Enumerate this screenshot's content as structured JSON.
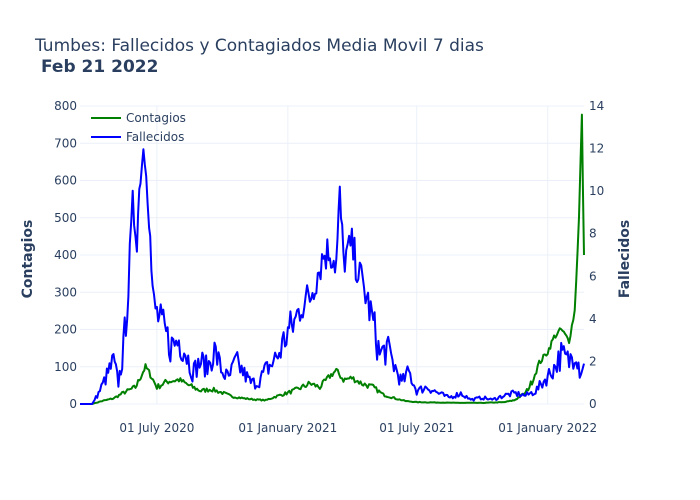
{
  "chart_data": {
    "type": "line",
    "title": "Tumbes: Fallecidos y Contagiados Media Movil 7 dias",
    "subtitle": "Feb 21 2022",
    "ylabel": "Contagios",
    "y2label": "Fallecidos",
    "ylim": [
      0,
      800
    ],
    "y2lim": [
      0,
      14
    ],
    "yticks": [
      "0",
      "100",
      "200",
      "300",
      "400",
      "500",
      "600",
      "700",
      "800"
    ],
    "y2ticks": [
      "0",
      "2",
      "4",
      "6",
      "8",
      "10",
      "12",
      "14"
    ],
    "xticks": [
      {
        "date": "2020-07-01",
        "label": "01 July 2020"
      },
      {
        "date": "2021-01-01",
        "label": "01 January 2021"
      },
      {
        "date": "2021-07-01",
        "label": "01 July 2021"
      },
      {
        "date": "2022-01-01",
        "label": "01 January 2022"
      }
    ],
    "xlim": [
      "2020-03-15",
      "2022-02-21"
    ],
    "grid": true,
    "legend_position": "top-left",
    "series": [
      {
        "name": "Contagios",
        "axis": "y",
        "color": "#008000",
        "points": [
          [
            "2020-03-15",
            0
          ],
          [
            "2020-04-01",
            0
          ],
          [
            "2020-04-15",
            8
          ],
          [
            "2020-05-01",
            15
          ],
          [
            "2020-05-15",
            30
          ],
          [
            "2020-06-01",
            45
          ],
          [
            "2020-06-10",
            80
          ],
          [
            "2020-06-15",
            100
          ],
          [
            "2020-06-20",
            85
          ],
          [
            "2020-07-01",
            45
          ],
          [
            "2020-07-15",
            60
          ],
          [
            "2020-08-01",
            65
          ],
          [
            "2020-08-15",
            50
          ],
          [
            "2020-09-01",
            35
          ],
          [
            "2020-09-15",
            40
          ],
          [
            "2020-10-01",
            30
          ],
          [
            "2020-10-15",
            20
          ],
          [
            "2020-11-01",
            15
          ],
          [
            "2020-11-15",
            12
          ],
          [
            "2020-12-01",
            10
          ],
          [
            "2020-12-15",
            20
          ],
          [
            "2021-01-01",
            30
          ],
          [
            "2021-01-15",
            40
          ],
          [
            "2021-02-01",
            55
          ],
          [
            "2021-02-15",
            45
          ],
          [
            "2021-03-01",
            75
          ],
          [
            "2021-03-10",
            90
          ],
          [
            "2021-03-20",
            65
          ],
          [
            "2021-04-01",
            70
          ],
          [
            "2021-04-15",
            55
          ],
          [
            "2021-05-01",
            45
          ],
          [
            "2021-05-15",
            25
          ],
          [
            "2021-06-01",
            15
          ],
          [
            "2021-06-15",
            8
          ],
          [
            "2021-07-01",
            5
          ],
          [
            "2021-08-01",
            4
          ],
          [
            "2021-09-01",
            3
          ],
          [
            "2021-10-01",
            3
          ],
          [
            "2021-11-01",
            5
          ],
          [
            "2021-11-15",
            10
          ],
          [
            "2021-12-01",
            30
          ],
          [
            "2021-12-10",
            60
          ],
          [
            "2021-12-20",
            110
          ],
          [
            "2022-01-01",
            140
          ],
          [
            "2022-01-10",
            180
          ],
          [
            "2022-01-20",
            200
          ],
          [
            "2022-01-31",
            170
          ],
          [
            "2022-02-08",
            250
          ],
          [
            "2022-02-14",
            500
          ],
          [
            "2022-02-18",
            772
          ],
          [
            "2022-02-21",
            400
          ]
        ]
      },
      {
        "name": "Fallecidos",
        "axis": "y2",
        "color": "#0000ff",
        "points": [
          [
            "2020-03-15",
            0
          ],
          [
            "2020-04-01",
            0
          ],
          [
            "2020-04-10",
            0.5
          ],
          [
            "2020-04-20",
            1.2
          ],
          [
            "2020-05-01",
            2.0
          ],
          [
            "2020-05-08",
            1.0
          ],
          [
            "2020-05-15",
            2.5
          ],
          [
            "2020-05-22",
            5.5
          ],
          [
            "2020-05-28",
            9.2
          ],
          [
            "2020-06-03",
            8.0
          ],
          [
            "2020-06-08",
            11.0
          ],
          [
            "2020-06-12",
            12.0
          ],
          [
            "2020-06-16",
            11.5
          ],
          [
            "2020-06-20",
            9.0
          ],
          [
            "2020-06-25",
            5.0
          ],
          [
            "2020-07-01",
            4.2
          ],
          [
            "2020-07-10",
            3.6
          ],
          [
            "2020-07-20",
            2.7
          ],
          [
            "2020-08-01",
            3.0
          ],
          [
            "2020-08-10",
            2.5
          ],
          [
            "2020-08-20",
            1.5
          ],
          [
            "2020-09-01",
            2.0
          ],
          [
            "2020-09-10",
            1.7
          ],
          [
            "2020-09-20",
            2.5
          ],
          [
            "2020-10-01",
            1.5
          ],
          [
            "2020-10-10",
            1.2
          ],
          [
            "2020-10-20",
            2.0
          ],
          [
            "2020-11-01",
            1.4
          ],
          [
            "2020-11-10",
            1.0
          ],
          [
            "2020-11-20",
            1.0
          ],
          [
            "2020-12-01",
            1.6
          ],
          [
            "2020-12-10",
            1.9
          ],
          [
            "2020-12-20",
            2.4
          ],
          [
            "2021-01-01",
            3.4
          ],
          [
            "2021-01-10",
            3.8
          ],
          [
            "2021-01-20",
            4.7
          ],
          [
            "2021-02-01",
            5.0
          ],
          [
            "2021-02-10",
            6.0
          ],
          [
            "2021-02-20",
            7.0
          ],
          [
            "2021-03-01",
            7.2
          ],
          [
            "2021-03-10",
            6.6
          ],
          [
            "2021-03-15",
            9.7
          ],
          [
            "2021-03-20",
            6.8
          ],
          [
            "2021-04-01",
            7.4
          ],
          [
            "2021-04-10",
            6.2
          ],
          [
            "2021-04-20",
            5.2
          ],
          [
            "2021-05-01",
            3.8
          ],
          [
            "2021-05-10",
            2.3
          ],
          [
            "2021-05-20",
            2.6
          ],
          [
            "2021-06-01",
            1.7
          ],
          [
            "2021-06-10",
            1.0
          ],
          [
            "2021-06-20",
            1.5
          ],
          [
            "2021-07-01",
            0.6
          ],
          [
            "2021-07-15",
            0.8
          ],
          [
            "2021-08-01",
            0.5
          ],
          [
            "2021-08-15",
            0.3
          ],
          [
            "2021-09-01",
            0.5
          ],
          [
            "2021-09-15",
            0.2
          ],
          [
            "2021-10-01",
            0.3
          ],
          [
            "2021-10-15",
            0.2
          ],
          [
            "2021-11-01",
            0.4
          ],
          [
            "2021-11-15",
            0.5
          ],
          [
            "2021-12-01",
            0.4
          ],
          [
            "2021-12-15",
            0.6
          ],
          [
            "2022-01-01",
            1.3
          ],
          [
            "2022-01-10",
            1.7
          ],
          [
            "2022-01-20",
            2.3
          ],
          [
            "2022-01-31",
            2.0
          ],
          [
            "2022-02-10",
            2.6
          ],
          [
            "2022-02-15",
            1.6
          ],
          [
            "2022-02-21",
            1.9
          ]
        ]
      }
    ]
  }
}
